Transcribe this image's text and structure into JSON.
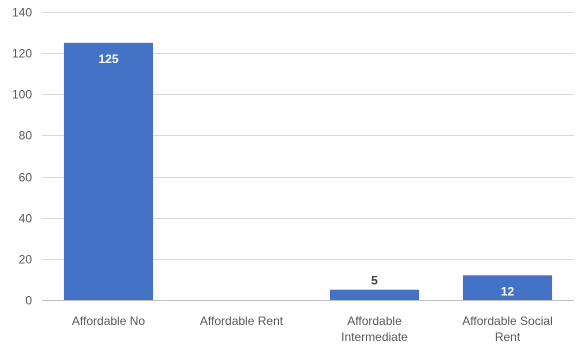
{
  "chart_data": {
    "type": "bar",
    "title": "",
    "xlabel": "",
    "ylabel": "",
    "categories": [
      "Affordable No",
      "Affordable Rent",
      "Affordable Intermediate",
      "Affordable Social Rent"
    ],
    "category_label_lines": [
      [
        "Affordable No"
      ],
      [
        "Affordable Rent"
      ],
      [
        "Affordable",
        "Intermediate"
      ],
      [
        "Affordable Social",
        "Rent"
      ]
    ],
    "values": [
      125,
      0,
      5,
      12
    ],
    "data_labels": [
      "125",
      "",
      "5",
      "12"
    ],
    "ylim": [
      0,
      140
    ],
    "yticks": [
      0,
      20,
      40,
      60,
      80,
      100,
      120,
      140
    ],
    "grid": true,
    "legend": "none",
    "colors": {
      "bar": "#4472c4",
      "label_inside": "#ffffff",
      "label_outside": "#404040"
    }
  }
}
